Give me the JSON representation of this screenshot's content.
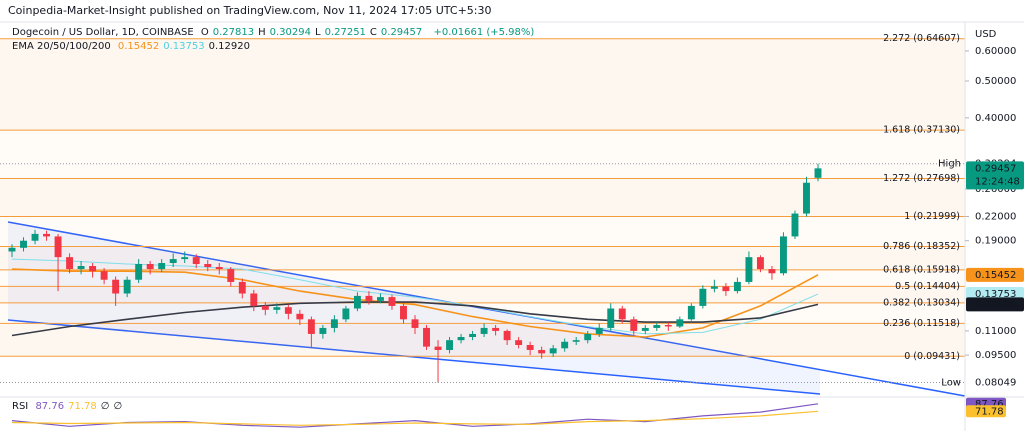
{
  "header": {
    "publisher": "Coinpedia-Market-Insight published on TradingView.com, Nov 11, 2024 17:05 UTC+5:30"
  },
  "chart_data": {
    "type": "candlestick",
    "title": "Dogecoin / US Dollar, 1D, COINBASE",
    "ohlc_legend": [
      [
        "O",
        "0.27813"
      ],
      [
        "H",
        "0.30294"
      ],
      [
        "L",
        "0.27251"
      ],
      [
        "C",
        "0.29457"
      ]
    ],
    "change": "+0.01661 (+5.98%)",
    "currency": "USD",
    "log_scale": true,
    "ylim": [
      0.0746,
      0.817
    ],
    "yticks": [
      {
        "value": 0.6,
        "label": "0.60000"
      },
      {
        "value": 0.5,
        "label": "0.50000"
      },
      {
        "value": 0.4,
        "label": "0.40000"
      },
      {
        "value": 0.26,
        "label": "0.26000"
      },
      {
        "value": 0.22,
        "label": "0.22000"
      },
      {
        "value": 0.19,
        "label": "0.19000"
      },
      {
        "value": 0.11,
        "label": "0.11000"
      },
      {
        "value": 0.095,
        "label": "0.09500"
      }
    ],
    "up_color": "#089981",
    "down_color": "#f23645",
    "candles": [
      [
        0.178,
        0.186,
        0.172,
        0.182
      ],
      [
        0.182,
        0.194,
        0.178,
        0.19
      ],
      [
        0.19,
        0.203,
        0.186,
        0.198
      ],
      [
        0.198,
        0.202,
        0.19,
        0.195
      ],
      [
        0.195,
        0.198,
        0.14,
        0.172
      ],
      [
        0.172,
        0.176,
        0.156,
        0.16
      ],
      [
        0.16,
        0.168,
        0.155,
        0.163
      ],
      [
        0.163,
        0.166,
        0.152,
        0.158
      ],
      [
        0.158,
        0.161,
        0.146,
        0.15
      ],
      [
        0.15,
        0.153,
        0.128,
        0.138
      ],
      [
        0.138,
        0.153,
        0.135,
        0.15
      ],
      [
        0.15,
        0.17,
        0.147,
        0.165
      ],
      [
        0.165,
        0.168,
        0.155,
        0.16
      ],
      [
        0.16,
        0.17,
        0.157,
        0.166
      ],
      [
        0.166,
        0.176,
        0.162,
        0.17
      ],
      [
        0.17,
        0.178,
        0.166,
        0.172
      ],
      [
        0.172,
        0.175,
        0.161,
        0.165
      ],
      [
        0.165,
        0.169,
        0.158,
        0.162
      ],
      [
        0.162,
        0.166,
        0.155,
        0.16
      ],
      [
        0.16,
        0.162,
        0.144,
        0.148
      ],
      [
        0.148,
        0.151,
        0.134,
        0.138
      ],
      [
        0.138,
        0.141,
        0.124,
        0.128
      ],
      [
        0.128,
        0.131,
        0.121,
        0.125
      ],
      [
        0.125,
        0.13,
        0.122,
        0.127
      ],
      [
        0.127,
        0.129,
        0.118,
        0.122
      ],
      [
        0.122,
        0.125,
        0.114,
        0.118
      ],
      [
        0.118,
        0.12,
        0.099,
        0.108
      ],
      [
        0.108,
        0.114,
        0.105,
        0.112
      ],
      [
        0.112,
        0.121,
        0.109,
        0.118
      ],
      [
        0.118,
        0.128,
        0.116,
        0.126
      ],
      [
        0.126,
        0.139,
        0.124,
        0.136
      ],
      [
        0.136,
        0.14,
        0.129,
        0.132
      ],
      [
        0.132,
        0.138,
        0.13,
        0.135
      ],
      [
        0.135,
        0.137,
        0.125,
        0.128
      ],
      [
        0.128,
        0.13,
        0.115,
        0.118
      ],
      [
        0.118,
        0.121,
        0.108,
        0.112
      ],
      [
        0.112,
        0.114,
        0.098,
        0.1
      ],
      [
        0.1,
        0.104,
        0.0805,
        0.098
      ],
      [
        0.098,
        0.106,
        0.096,
        0.104
      ],
      [
        0.104,
        0.108,
        0.102,
        0.106
      ],
      [
        0.106,
        0.11,
        0.104,
        0.108
      ],
      [
        0.108,
        0.115,
        0.106,
        0.112
      ],
      [
        0.112,
        0.114,
        0.107,
        0.11
      ],
      [
        0.11,
        0.111,
        0.101,
        0.104
      ],
      [
        0.104,
        0.106,
        0.099,
        0.101
      ],
      [
        0.101,
        0.103,
        0.095,
        0.098
      ],
      [
        0.098,
        0.1,
        0.093,
        0.096
      ],
      [
        0.096,
        0.101,
        0.094,
        0.099
      ],
      [
        0.099,
        0.105,
        0.097,
        0.103
      ],
      [
        0.103,
        0.106,
        0.101,
        0.104
      ],
      [
        0.104,
        0.11,
        0.102,
        0.108
      ],
      [
        0.108,
        0.115,
        0.106,
        0.112
      ],
      [
        0.112,
        0.13,
        0.11,
        0.126
      ],
      [
        0.126,
        0.128,
        0.115,
        0.118
      ],
      [
        0.118,
        0.12,
        0.107,
        0.11
      ],
      [
        0.11,
        0.114,
        0.108,
        0.112
      ],
      [
        0.112,
        0.116,
        0.11,
        0.114
      ],
      [
        0.114,
        0.116,
        0.11,
        0.113
      ],
      [
        0.113,
        0.12,
        0.112,
        0.118
      ],
      [
        0.118,
        0.13,
        0.117,
        0.128
      ],
      [
        0.128,
        0.145,
        0.126,
        0.142
      ],
      [
        0.142,
        0.15,
        0.139,
        0.144
      ],
      [
        0.144,
        0.147,
        0.136,
        0.14
      ],
      [
        0.14,
        0.152,
        0.138,
        0.148
      ],
      [
        0.148,
        0.178,
        0.146,
        0.172
      ],
      [
        0.172,
        0.174,
        0.157,
        0.16
      ],
      [
        0.16,
        0.163,
        0.15,
        0.156
      ],
      [
        0.156,
        0.2,
        0.154,
        0.195
      ],
      [
        0.195,
        0.228,
        0.192,
        0.224
      ],
      [
        0.224,
        0.28,
        0.22,
        0.27
      ],
      [
        0.27813,
        0.30294,
        0.27251,
        0.29457
      ]
    ],
    "ema_legend": {
      "name": "EMA 20/50/100/200",
      "values": [
        "0.15452",
        "0.13753",
        "0.12920"
      ],
      "colors": [
        "#f7931a",
        "#4dd0e1",
        "#131722"
      ]
    },
    "series": [
      {
        "color": "#f7931a",
        "x": [
          0,
          5,
          10,
          15,
          20,
          25,
          30,
          35,
          40,
          45,
          50,
          55,
          60,
          65,
          70
        ],
        "values": [
          0.16,
          0.158,
          0.158,
          0.157,
          0.15,
          0.14,
          0.133,
          0.129,
          0.12,
          0.113,
          0.108,
          0.106,
          0.112,
          0.128,
          0.15452
        ]
      },
      {
        "color": "#80deea",
        "x": [
          0,
          5,
          10,
          15,
          20,
          25,
          30,
          35,
          40,
          45,
          50,
          55,
          60,
          65,
          70
        ],
        "values": [
          0.17,
          0.168,
          0.165,
          0.163,
          0.16,
          0.15,
          0.14,
          0.135,
          0.128,
          0.12,
          0.113,
          0.108,
          0.109,
          0.118,
          0.13753
        ]
      },
      {
        "color": "#363a45",
        "x": [
          0,
          5,
          10,
          15,
          20,
          25,
          30,
          35,
          40,
          45,
          50,
          55,
          60,
          65,
          70
        ],
        "values": [
          0.107,
          0.113,
          0.118,
          0.123,
          0.127,
          0.13,
          0.131,
          0.131,
          0.128,
          0.122,
          0.118,
          0.116,
          0.116,
          0.119,
          0.1292
        ]
      }
    ],
    "fib_color": "#f59d3d",
    "fib_levels": [
      {
        "value": 0.64607,
        "label": "2.272 (0.64607)"
      },
      {
        "value": 0.3713,
        "label": "1.618 (0.37130)"
      },
      {
        "value": 0.27698,
        "label": "1.272 (0.27698)"
      },
      {
        "value": 0.21999,
        "label": "1 (0.21999)"
      },
      {
        "value": 0.18352,
        "label": "0.786 (0.18352)"
      },
      {
        "value": 0.15918,
        "label": "0.618 (0.15918)"
      },
      {
        "value": 0.14404,
        "label": "0.5 (0.14404)"
      },
      {
        "value": 0.13034,
        "label": "0.382 (0.13034)"
      },
      {
        "value": 0.11518,
        "label": "0.236 (0.11518)"
      },
      {
        "value": 0.09431,
        "label": "0 (0.09431)"
      }
    ],
    "price_tags": [
      {
        "label": "High",
        "price": 0.30294,
        "color": "#ffffff",
        "text_color": "#131722"
      },
      {
        "price": 0.29457,
        "countdown": "12:24:48",
        "color": "#089981",
        "text_color": "#ffffff"
      },
      {
        "price": 0.15452,
        "color": "#f7931a",
        "text_color": "#ffffff"
      },
      {
        "price": 0.13753,
        "color": "#b2ebf2",
        "text_color": "#131722"
      },
      {
        "price": {
          "value": 0.1292,
          "label": "0.12920"
        },
        "color": "#131722",
        "text_color": "#ffffff"
      },
      {
        "label": "Low",
        "price": 0.08049,
        "color": "#ffffff",
        "text_color": "#131722"
      }
    ],
    "rsi": {
      "title": "RSI",
      "legend": [
        "87.76",
        "71.78",
        "∅",
        "∅"
      ],
      "ylim": [
        30,
        100
      ],
      "x": [
        0,
        5,
        10,
        15,
        20,
        25,
        30,
        35,
        40,
        45,
        50,
        55,
        60,
        65,
        70
      ],
      "values": [
        52,
        40,
        48,
        50,
        42,
        38,
        45,
        52,
        40,
        45,
        55,
        50,
        62,
        70,
        87.76
      ],
      "ma": [
        48,
        46,
        47,
        48,
        45,
        42,
        44,
        47,
        45,
        44,
        50,
        52,
        56,
        62,
        71.78
      ],
      "color": "#7e57c2",
      "ma_color": "#fbc02d",
      "tags": [
        87.76,
        71.78
      ]
    }
  }
}
